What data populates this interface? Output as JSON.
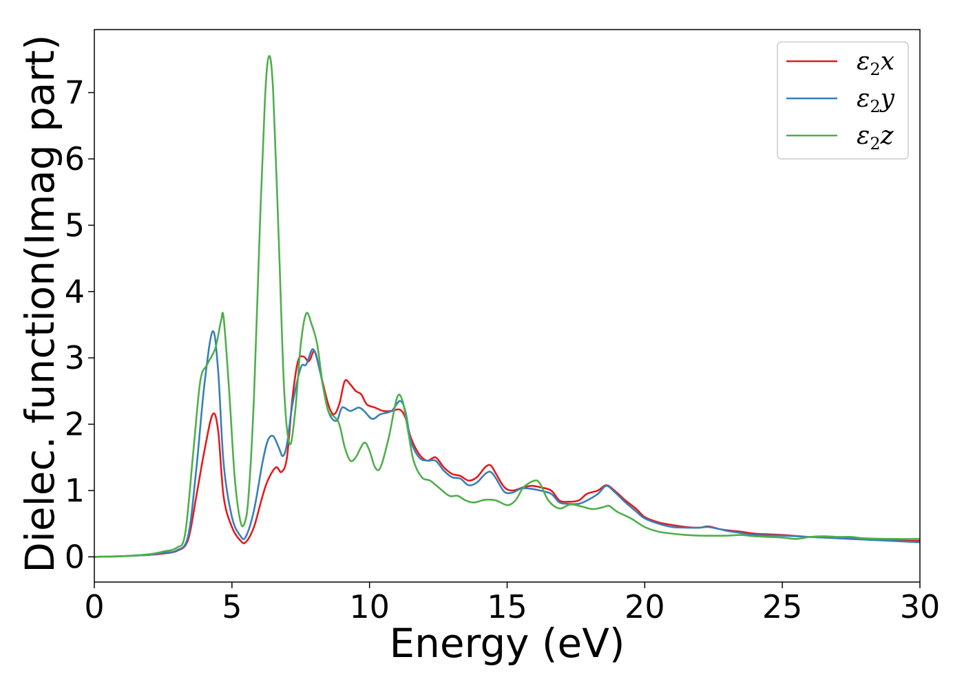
{
  "chart_data": {
    "type": "line",
    "title": "",
    "xlabel": "Energy (eV)",
    "ylabel": "Dielec. function(Imag part)",
    "xlim": [
      0,
      30
    ],
    "ylim": [
      -0.38,
      7.95
    ],
    "x_ticks": [
      "0",
      "5",
      "10",
      "15",
      "20",
      "25",
      "30"
    ],
    "y_ticks": [
      "0",
      "1",
      "2",
      "3",
      "4",
      "5",
      "6",
      "7"
    ],
    "grid": false,
    "legend_position": "top-right",
    "legend": {
      "base": "ε",
      "sub": "2"
    },
    "series": [
      {
        "name": "ε2x",
        "legend_suffix": "x",
        "color": "#e41a1c",
        "points": [
          [
            0,
            0.0
          ],
          [
            1,
            0.01
          ],
          [
            2,
            0.03
          ],
          [
            2.5,
            0.05
          ],
          [
            3,
            0.09
          ],
          [
            3.4,
            0.25
          ],
          [
            3.7,
            0.9
          ],
          [
            4.0,
            1.6
          ],
          [
            4.3,
            2.15
          ],
          [
            4.5,
            1.9
          ],
          [
            4.7,
            0.9
          ],
          [
            5.0,
            0.45
          ],
          [
            5.3,
            0.25
          ],
          [
            5.5,
            0.22
          ],
          [
            5.8,
            0.45
          ],
          [
            6.1,
            0.9
          ],
          [
            6.3,
            1.15
          ],
          [
            6.6,
            1.35
          ],
          [
            6.8,
            1.28
          ],
          [
            7.0,
            1.5
          ],
          [
            7.2,
            2.4
          ],
          [
            7.4,
            2.95
          ],
          [
            7.6,
            3.02
          ],
          [
            7.8,
            2.95
          ],
          [
            8.0,
            3.1
          ],
          [
            8.2,
            2.8
          ],
          [
            8.5,
            2.3
          ],
          [
            8.7,
            2.15
          ],
          [
            8.9,
            2.3
          ],
          [
            9.1,
            2.65
          ],
          [
            9.3,
            2.6
          ],
          [
            9.5,
            2.5
          ],
          [
            9.7,
            2.45
          ],
          [
            9.9,
            2.3
          ],
          [
            10.2,
            2.25
          ],
          [
            10.5,
            2.2
          ],
          [
            10.8,
            2.2
          ],
          [
            11.1,
            2.22
          ],
          [
            11.3,
            2.1
          ],
          [
            11.5,
            1.8
          ],
          [
            11.8,
            1.55
          ],
          [
            12.1,
            1.45
          ],
          [
            12.4,
            1.5
          ],
          [
            12.7,
            1.35
          ],
          [
            13.0,
            1.25
          ],
          [
            13.3,
            1.22
          ],
          [
            13.6,
            1.15
          ],
          [
            13.9,
            1.2
          ],
          [
            14.2,
            1.35
          ],
          [
            14.4,
            1.38
          ],
          [
            14.6,
            1.25
          ],
          [
            14.9,
            1.05
          ],
          [
            15.2,
            1.0
          ],
          [
            15.6,
            1.05
          ],
          [
            15.9,
            1.07
          ],
          [
            16.2,
            1.05
          ],
          [
            16.6,
            1.0
          ],
          [
            16.9,
            0.85
          ],
          [
            17.2,
            0.83
          ],
          [
            17.6,
            0.85
          ],
          [
            17.9,
            0.95
          ],
          [
            18.3,
            1.0
          ],
          [
            18.6,
            1.08
          ],
          [
            18.9,
            1.0
          ],
          [
            19.3,
            0.85
          ],
          [
            19.7,
            0.72
          ],
          [
            20.0,
            0.6
          ],
          [
            20.5,
            0.52
          ],
          [
            21.0,
            0.48
          ],
          [
            21.5,
            0.45
          ],
          [
            22.0,
            0.44
          ],
          [
            22.3,
            0.46
          ],
          [
            22.7,
            0.42
          ],
          [
            23.0,
            0.4
          ],
          [
            23.5,
            0.38
          ],
          [
            24.0,
            0.35
          ],
          [
            25.0,
            0.33
          ],
          [
            26.0,
            0.3
          ],
          [
            27.0,
            0.29
          ],
          [
            28.0,
            0.27
          ],
          [
            29.0,
            0.25
          ],
          [
            30.0,
            0.24
          ]
        ]
      },
      {
        "name": "ε2y",
        "legend_suffix": "y",
        "color": "#377eb8",
        "points": [
          [
            0,
            0.0
          ],
          [
            1,
            0.01
          ],
          [
            2,
            0.03
          ],
          [
            2.5,
            0.06
          ],
          [
            3,
            0.1
          ],
          [
            3.4,
            0.3
          ],
          [
            3.7,
            1.3
          ],
          [
            4.0,
            2.6
          ],
          [
            4.3,
            3.4
          ],
          [
            4.5,
            2.8
          ],
          [
            4.7,
            1.4
          ],
          [
            5.0,
            0.6
          ],
          [
            5.3,
            0.32
          ],
          [
            5.5,
            0.3
          ],
          [
            5.8,
            0.7
          ],
          [
            6.1,
            1.4
          ],
          [
            6.3,
            1.75
          ],
          [
            6.5,
            1.82
          ],
          [
            6.7,
            1.65
          ],
          [
            6.85,
            1.52
          ],
          [
            7.0,
            1.7
          ],
          [
            7.2,
            2.3
          ],
          [
            7.5,
            2.85
          ],
          [
            7.7,
            2.9
          ],
          [
            7.95,
            3.13
          ],
          [
            8.2,
            2.8
          ],
          [
            8.5,
            2.2
          ],
          [
            8.8,
            2.05
          ],
          [
            9.0,
            2.25
          ],
          [
            9.3,
            2.2
          ],
          [
            9.6,
            2.25
          ],
          [
            9.8,
            2.2
          ],
          [
            10.1,
            2.08
          ],
          [
            10.4,
            2.15
          ],
          [
            10.8,
            2.2
          ],
          [
            11.1,
            2.35
          ],
          [
            11.3,
            2.2
          ],
          [
            11.5,
            1.75
          ],
          [
            11.8,
            1.5
          ],
          [
            12.1,
            1.45
          ],
          [
            12.4,
            1.45
          ],
          [
            12.7,
            1.3
          ],
          [
            13.0,
            1.2
          ],
          [
            13.3,
            1.18
          ],
          [
            13.6,
            1.08
          ],
          [
            13.9,
            1.12
          ],
          [
            14.2,
            1.25
          ],
          [
            14.4,
            1.28
          ],
          [
            14.6,
            1.18
          ],
          [
            14.9,
            0.98
          ],
          [
            15.2,
            0.97
          ],
          [
            15.5,
            1.03
          ],
          [
            15.8,
            1.03
          ],
          [
            16.2,
            1.0
          ],
          [
            16.6,
            0.95
          ],
          [
            16.9,
            0.82
          ],
          [
            17.2,
            0.8
          ],
          [
            17.6,
            0.8
          ],
          [
            17.9,
            0.85
          ],
          [
            18.3,
            0.95
          ],
          [
            18.6,
            1.07
          ],
          [
            18.9,
            0.98
          ],
          [
            19.3,
            0.82
          ],
          [
            19.7,
            0.68
          ],
          [
            20.0,
            0.58
          ],
          [
            20.5,
            0.5
          ],
          [
            21.0,
            0.45
          ],
          [
            21.5,
            0.44
          ],
          [
            22.0,
            0.44
          ],
          [
            22.3,
            0.45
          ],
          [
            22.7,
            0.42
          ],
          [
            23.0,
            0.39
          ],
          [
            23.5,
            0.36
          ],
          [
            24.0,
            0.33
          ],
          [
            25.0,
            0.32
          ],
          [
            26.0,
            0.3
          ],
          [
            27.0,
            0.28
          ],
          [
            28.0,
            0.26
          ],
          [
            29.0,
            0.24
          ],
          [
            30.0,
            0.22
          ]
        ]
      },
      {
        "name": "ε2z",
        "legend_suffix": "z",
        "color": "#4daf4a",
        "points": [
          [
            0,
            0.0
          ],
          [
            1,
            0.01
          ],
          [
            2,
            0.04
          ],
          [
            2.5,
            0.08
          ],
          [
            3,
            0.14
          ],
          [
            3.3,
            0.35
          ],
          [
            3.6,
            1.6
          ],
          [
            3.85,
            2.65
          ],
          [
            4.1,
            2.9
          ],
          [
            4.4,
            3.15
          ],
          [
            4.6,
            3.55
          ],
          [
            4.7,
            3.6
          ],
          [
            4.9,
            2.5
          ],
          [
            5.1,
            1.2
          ],
          [
            5.3,
            0.55
          ],
          [
            5.45,
            0.5
          ],
          [
            5.6,
            0.9
          ],
          [
            5.8,
            2.4
          ],
          [
            6.0,
            4.8
          ],
          [
            6.2,
            6.9
          ],
          [
            6.35,
            7.55
          ],
          [
            6.5,
            7.0
          ],
          [
            6.7,
            4.8
          ],
          [
            6.9,
            2.5
          ],
          [
            7.1,
            1.7
          ],
          [
            7.3,
            2.2
          ],
          [
            7.5,
            3.2
          ],
          [
            7.7,
            3.67
          ],
          [
            7.9,
            3.5
          ],
          [
            8.1,
            3.2
          ],
          [
            8.3,
            2.6
          ],
          [
            8.5,
            2.2
          ],
          [
            8.7,
            2.12
          ],
          [
            8.9,
            2.0
          ],
          [
            9.1,
            1.65
          ],
          [
            9.3,
            1.45
          ],
          [
            9.5,
            1.5
          ],
          [
            9.8,
            1.72
          ],
          [
            10.0,
            1.6
          ],
          [
            10.2,
            1.35
          ],
          [
            10.4,
            1.35
          ],
          [
            10.7,
            1.8
          ],
          [
            11.0,
            2.4
          ],
          [
            11.2,
            2.35
          ],
          [
            11.4,
            1.9
          ],
          [
            11.6,
            1.45
          ],
          [
            11.9,
            1.2
          ],
          [
            12.2,
            1.15
          ],
          [
            12.5,
            1.05
          ],
          [
            12.9,
            0.92
          ],
          [
            13.2,
            0.92
          ],
          [
            13.5,
            0.85
          ],
          [
            13.8,
            0.82
          ],
          [
            14.2,
            0.86
          ],
          [
            14.6,
            0.85
          ],
          [
            15.0,
            0.78
          ],
          [
            15.3,
            0.85
          ],
          [
            15.6,
            1.05
          ],
          [
            16.0,
            1.15
          ],
          [
            16.2,
            1.1
          ],
          [
            16.5,
            0.85
          ],
          [
            16.9,
            0.73
          ],
          [
            17.3,
            0.79
          ],
          [
            17.7,
            0.76
          ],
          [
            18.1,
            0.72
          ],
          [
            18.5,
            0.75
          ],
          [
            18.7,
            0.77
          ],
          [
            19.0,
            0.68
          ],
          [
            19.5,
            0.58
          ],
          [
            20.0,
            0.45
          ],
          [
            20.5,
            0.38
          ],
          [
            21.0,
            0.35
          ],
          [
            21.5,
            0.33
          ],
          [
            22.0,
            0.32
          ],
          [
            23.0,
            0.32
          ],
          [
            23.5,
            0.33
          ],
          [
            24.0,
            0.31
          ],
          [
            25.0,
            0.29
          ],
          [
            25.5,
            0.27
          ],
          [
            26.0,
            0.3
          ],
          [
            26.5,
            0.31
          ],
          [
            27.0,
            0.3
          ],
          [
            27.5,
            0.3
          ],
          [
            28.0,
            0.28
          ],
          [
            29.0,
            0.27
          ],
          [
            30.0,
            0.27
          ]
        ]
      }
    ]
  }
}
